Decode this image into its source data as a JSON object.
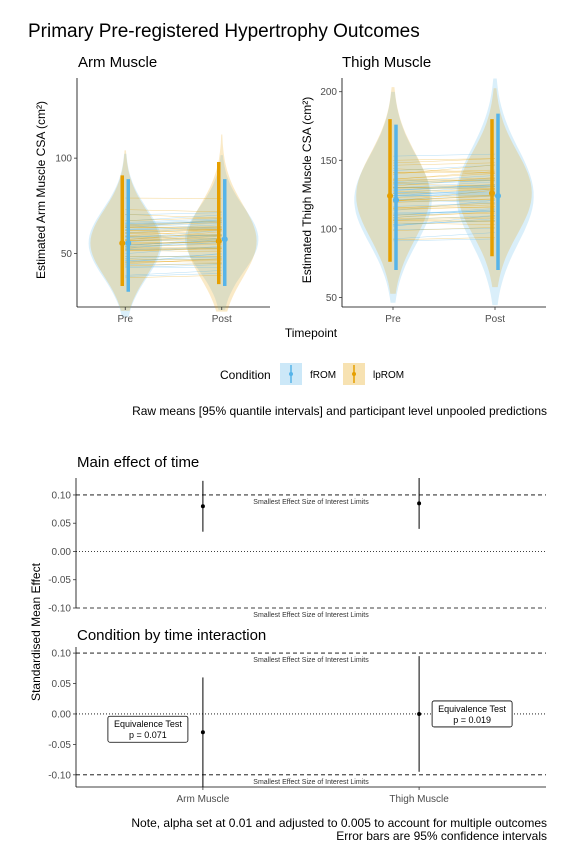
{
  "title": "Primary Pre-registered Hypertrophy Outcomes",
  "colors": {
    "fROM": "#56B4E9",
    "lpROM": "#E69F00"
  },
  "top_caption": "Raw means [95% quantile intervals] and participant level unpooled predictions",
  "legend": {
    "title": "Condition",
    "items": [
      {
        "label": "fROM",
        "color": "#56B4E9"
      },
      {
        "label": "lpROM",
        "color": "#E69F00"
      }
    ]
  },
  "shared_xlabel": "Timepoint",
  "bottom_ylabel": "Standardised Mean Effect",
  "bottom_caption_line1": "Note, alpha set at 0.01 and adjusted to 0.005 to account for multiple outcomes",
  "bottom_caption_line2": "Error bars are 95% confidence intervals",
  "sesoi_label": "Smallest Effect Size of Interest Limits",
  "chart_data": [
    {
      "type": "violin",
      "title": "Arm Muscle",
      "ylabel": "Estimated Arm Muscle CSA (cm²)",
      "xlabel": "Timepoint",
      "categories": [
        "Pre",
        "Post"
      ],
      "yticks": [
        50,
        100
      ],
      "ylim": [
        22,
        142
      ],
      "series": [
        {
          "name": "fROM",
          "means": [
            55.5,
            57.5
          ],
          "lower": [
            30,
            33
          ],
          "upper": [
            89,
            89
          ]
        },
        {
          "name": "lpROM",
          "means": [
            55.5,
            56.5
          ],
          "lower": [
            33,
            34
          ],
          "upper": [
            91,
            98
          ]
        }
      ]
    },
    {
      "type": "violin",
      "title": "Thigh Muscle",
      "ylabel": "Estimated Thigh Muscle CSA (cm²)",
      "xlabel": "Timepoint",
      "categories": [
        "Pre",
        "Post"
      ],
      "yticks": [
        50,
        100,
        150,
        200
      ],
      "ylim": [
        43,
        210
      ],
      "series": [
        {
          "name": "fROM",
          "means": [
            121,
            124
          ],
          "lower": [
            70,
            70
          ],
          "upper": [
            176,
            184
          ]
        },
        {
          "name": "lpROM",
          "means": [
            124,
            126
          ],
          "lower": [
            76,
            80
          ],
          "upper": [
            180,
            180
          ]
        }
      ]
    },
    {
      "type": "scatter",
      "title": "Main effect of time",
      "categories": [
        "Arm Muscle",
        "Thigh Muscle"
      ],
      "ylim": [
        -0.1,
        0.13
      ],
      "yticks": [
        -0.1,
        -0.05,
        0.0,
        0.05,
        0.1
      ],
      "ytick_labels": [
        "-0.10",
        "-0.05",
        "0.00",
        "0.05",
        "0.10"
      ],
      "sesoi": [
        -0.1,
        0.1
      ],
      "points": [
        {
          "x": "Arm Muscle",
          "estimate": 0.08,
          "lower": 0.035,
          "upper": 0.125
        },
        {
          "x": "Thigh Muscle",
          "estimate": 0.085,
          "lower": 0.04,
          "upper": 0.13
        }
      ]
    },
    {
      "type": "scatter",
      "title": "Condition by time interaction",
      "categories": [
        "Arm Muscle",
        "Thigh Muscle"
      ],
      "ylim": [
        -0.12,
        0.11
      ],
      "yticks": [
        -0.1,
        -0.05,
        0.0,
        0.05,
        0.1
      ],
      "ytick_labels": [
        "-0.10",
        "-0.05",
        "0.00",
        "0.05",
        "0.10"
      ],
      "sesoi": [
        -0.1,
        0.1
      ],
      "points": [
        {
          "x": "Arm Muscle",
          "estimate": -0.03,
          "lower": -0.12,
          "upper": 0.06,
          "label_line1": "Equivalence Test",
          "label_line2": "p = 0.071"
        },
        {
          "x": "Thigh Muscle",
          "estimate": 0.0,
          "lower": -0.095,
          "upper": 0.095,
          "label_line1": "Equivalence Test",
          "label_line2": "p = 0.019"
        }
      ]
    }
  ]
}
